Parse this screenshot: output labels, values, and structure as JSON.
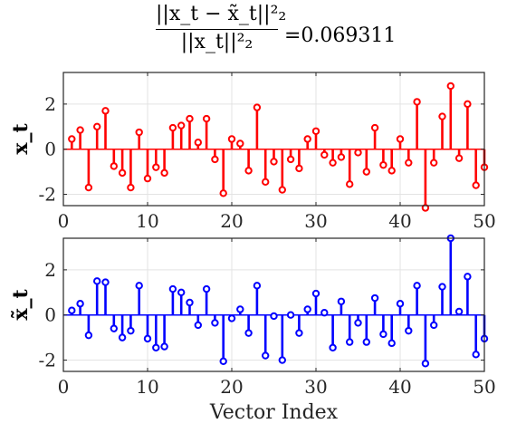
{
  "title": {
    "numerator": "||x_t − x̃_t||²₂",
    "denominator": "||x_t||²₂",
    "equals_value": "=0.069311"
  },
  "chart_data": [
    {
      "type": "stem",
      "name": "x_t",
      "ylabel": "x_t",
      "xlabel": "",
      "color": "#ff0000",
      "xlim": [
        0,
        50
      ],
      "ylim": [
        -2.5,
        3.4
      ],
      "xticks": [
        0,
        10,
        20,
        30,
        40,
        50
      ],
      "yticks": [
        -2,
        0,
        2
      ],
      "xtick_labels": [
        "0",
        "10",
        "20",
        "30",
        "40",
        "50"
      ],
      "ytick_labels": [
        "-2",
        "0",
        "2"
      ],
      "grid": true,
      "x": [
        1,
        2,
        3,
        4,
        5,
        6,
        7,
        8,
        9,
        10,
        11,
        12,
        13,
        14,
        15,
        16,
        17,
        18,
        19,
        20,
        21,
        22,
        23,
        24,
        25,
        26,
        27,
        28,
        29,
        30,
        31,
        32,
        33,
        34,
        35,
        36,
        37,
        38,
        39,
        40,
        41,
        42,
        43,
        44,
        45,
        46,
        47,
        48,
        49,
        50
      ],
      "values": [
        0.45,
        0.85,
        -1.7,
        1.0,
        1.7,
        -0.75,
        -1.05,
        -1.7,
        0.75,
        -1.3,
        -0.8,
        -1.05,
        0.95,
        1.05,
        1.35,
        0.3,
        1.35,
        -0.45,
        -1.95,
        0.45,
        0.25,
        -0.95,
        1.85,
        -1.45,
        -0.55,
        -1.8,
        -0.45,
        -0.85,
        0.45,
        0.8,
        -0.25,
        -0.6,
        -0.35,
        -1.55,
        -0.15,
        -1.0,
        0.95,
        -0.7,
        -0.95,
        0.45,
        -0.6,
        2.1,
        -2.6,
        -0.6,
        1.45,
        2.8,
        -0.4,
        2.0,
        -1.6,
        -0.8
      ]
    },
    {
      "type": "stem",
      "name": "x̃_t",
      "ylabel": "x̃_t",
      "xlabel": "Vector Index",
      "color": "#0000ff",
      "xlim": [
        0,
        50
      ],
      "ylim": [
        -2.5,
        3.4
      ],
      "xticks": [
        0,
        10,
        20,
        30,
        40,
        50
      ],
      "yticks": [
        -2,
        0,
        2
      ],
      "xtick_labels": [
        "0",
        "10",
        "20",
        "30",
        "40",
        "50"
      ],
      "ytick_labels": [
        "-2",
        "0",
        "2"
      ],
      "grid": true,
      "x": [
        1,
        2,
        3,
        4,
        5,
        6,
        7,
        8,
        9,
        10,
        11,
        12,
        13,
        14,
        15,
        16,
        17,
        18,
        19,
        20,
        21,
        22,
        23,
        24,
        25,
        26,
        27,
        28,
        29,
        30,
        31,
        32,
        33,
        34,
        35,
        36,
        37,
        38,
        39,
        40,
        41,
        42,
        43,
        44,
        45,
        46,
        47,
        48,
        49,
        50
      ],
      "values": [
        0.2,
        0.5,
        -0.9,
        1.5,
        1.45,
        -0.6,
        -1.0,
        -0.7,
        1.3,
        -1.05,
        -1.45,
        -1.4,
        1.15,
        1.0,
        0.55,
        -0.45,
        1.15,
        -0.35,
        -2.05,
        -0.15,
        0.25,
        -0.8,
        1.3,
        -1.8,
        -0.05,
        -2.0,
        0.0,
        -0.8,
        0.25,
        0.95,
        0.1,
        -1.45,
        0.6,
        -1.2,
        -0.35,
        -1.2,
        0.75,
        -0.85,
        -1.25,
        0.5,
        -0.7,
        1.3,
        -2.15,
        -0.45,
        1.25,
        3.4,
        0.15,
        1.7,
        -1.75,
        -1.05
      ]
    }
  ]
}
